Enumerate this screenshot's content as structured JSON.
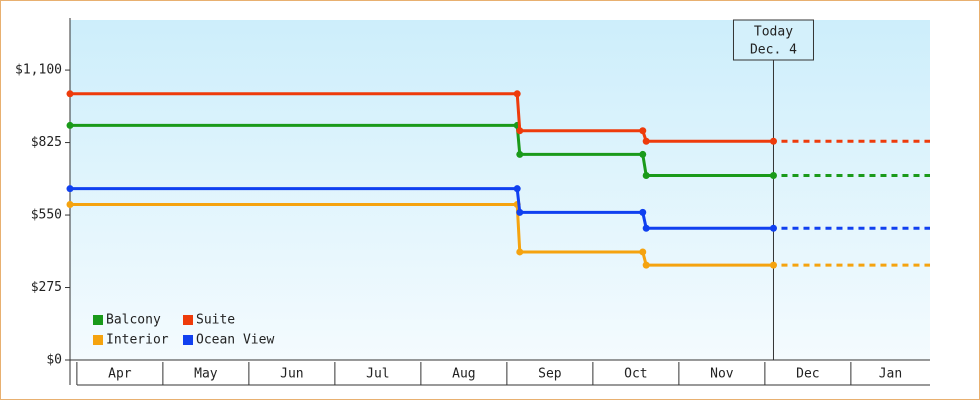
{
  "chart_data": {
    "type": "line",
    "step": true,
    "x": [
      -0.08,
      5.12,
      5.15,
      6.58,
      6.62,
      8.1
    ],
    "xlim": [
      -0.08,
      9.92
    ],
    "xticks": [
      {
        "value": 0.5,
        "label": "Apr"
      },
      {
        "value": 1.5,
        "label": "May"
      },
      {
        "value": 2.5,
        "label": "Jun"
      },
      {
        "value": 3.5,
        "label": "Jul"
      },
      {
        "value": 4.5,
        "label": "Aug"
      },
      {
        "value": 5.5,
        "label": "Sep"
      },
      {
        "value": 6.5,
        "label": "Oct"
      },
      {
        "value": 7.5,
        "label": "Nov"
      },
      {
        "value": 8.5,
        "label": "Dec"
      },
      {
        "value": 9.5,
        "label": "Jan"
      }
    ],
    "ylim": [
      0,
      1290
    ],
    "yticks": [
      {
        "value": 0,
        "label": "$0"
      },
      {
        "value": 275,
        "label": "$275"
      },
      {
        "value": 550,
        "label": "$550"
      },
      {
        "value": 825,
        "label": "$825"
      },
      {
        "value": 1100,
        "label": "$1,100"
      }
    ],
    "series": [
      {
        "name": "Balcony",
        "color": "#1a9a1a",
        "values": [
          890,
          890,
          780,
          780,
          700,
          700
        ]
      },
      {
        "name": "Suite",
        "color": "#ee3b0b",
        "values": [
          1010,
          1010,
          870,
          870,
          830,
          830
        ]
      },
      {
        "name": "Interior",
        "color": "#f5a30f",
        "values": [
          590,
          590,
          410,
          410,
          360,
          360
        ]
      },
      {
        "name": "Ocean View",
        "color": "#1040f0",
        "values": [
          650,
          650,
          560,
          560,
          500,
          500
        ]
      }
    ],
    "today": {
      "x": 8.1,
      "label": [
        "Today",
        "Dec. 4"
      ]
    },
    "projection": "dashed",
    "legend": "bottom-left"
  }
}
